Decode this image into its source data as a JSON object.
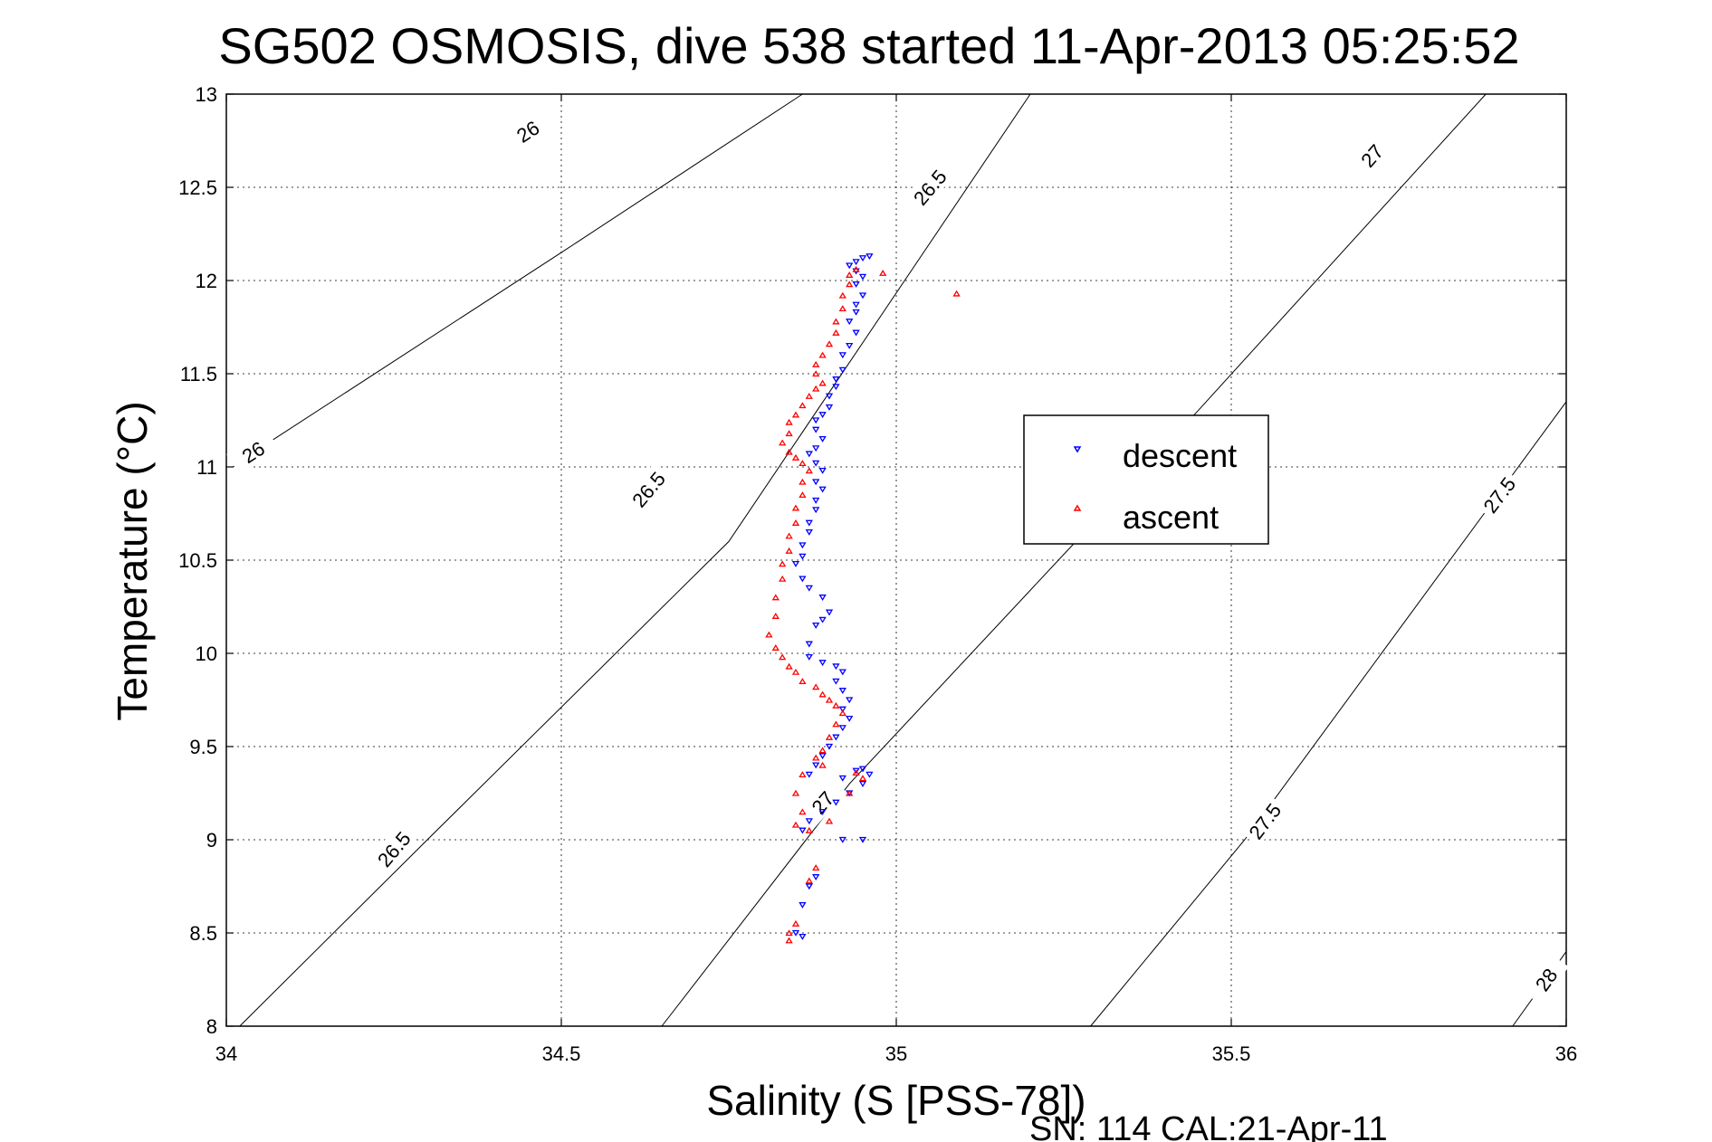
{
  "chart_data": {
    "type": "scatter",
    "title": "SG502 OSMOSIS, dive 538 started 11-Apr-2013 05:25:52",
    "xlabel": "Salinity (S [PSS-78])",
    "ylabel": "Temperature (°C)",
    "footer": "SN: 114  CAL:21-Apr-11",
    "xlim": [
      34,
      36
    ],
    "ylim": [
      8,
      13
    ],
    "xticks": [
      "34",
      "34.5",
      "35",
      "35.5",
      "36"
    ],
    "yticks": [
      "8",
      "8.5",
      "9",
      "9.5",
      "10",
      "10.5",
      "11",
      "11.5",
      "12",
      "12.5",
      "13"
    ],
    "grid": true,
    "legend_position": "right",
    "density_contours": [
      {
        "label": "26",
        "points": [
          [
            34.01,
            11.0
          ],
          [
            34.05,
            11.1
          ],
          [
            34.5,
            12.15
          ],
          [
            34.86,
            13.0
          ]
        ],
        "label_positions": [
          [
            34.04,
            11.08
          ],
          [
            34.45,
            12.8
          ]
        ]
      },
      {
        "label": "26.5",
        "points": [
          [
            34.02,
            8.0
          ],
          [
            34.3,
            9.0
          ],
          [
            34.75,
            10.6
          ],
          [
            35.2,
            13.0
          ]
        ],
        "label_positions": [
          [
            34.25,
            8.95
          ],
          [
            34.63,
            10.88
          ],
          [
            35.05,
            12.5
          ]
        ]
      },
      {
        "label": "27",
        "points": [
          [
            34.65,
            8.0
          ],
          [
            34.93,
            9.3
          ],
          [
            35.45,
            11.3
          ],
          [
            35.88,
            13.0
          ]
        ],
        "label_positions": [
          [
            34.89,
            9.2
          ],
          [
            35.71,
            12.67
          ]
        ]
      },
      {
        "label": "27.5",
        "points": [
          [
            35.29,
            8.0
          ],
          [
            35.52,
            9.0
          ],
          [
            36.0,
            11.35
          ]
        ],
        "label_positions": [
          [
            35.55,
            9.1
          ],
          [
            35.9,
            10.85
          ]
        ]
      },
      {
        "label": "28",
        "points": [
          [
            35.92,
            8.0
          ],
          [
            36.0,
            8.4
          ]
        ],
        "label_positions": [
          [
            35.97,
            8.25
          ]
        ]
      }
    ],
    "series": [
      {
        "name": "descent",
        "color": "#0000ff",
        "marker": "triangle-down",
        "points": [
          [
            34.96,
            12.13
          ],
          [
            34.95,
            12.12
          ],
          [
            34.94,
            12.1
          ],
          [
            34.93,
            12.08
          ],
          [
            34.94,
            12.05
          ],
          [
            34.95,
            12.02
          ],
          [
            34.94,
            11.98
          ],
          [
            34.95,
            11.92
          ],
          [
            34.94,
            11.87
          ],
          [
            34.94,
            11.83
          ],
          [
            34.93,
            11.78
          ],
          [
            34.94,
            11.72
          ],
          [
            34.93,
            11.65
          ],
          [
            34.92,
            11.6
          ],
          [
            34.92,
            11.52
          ],
          [
            34.91,
            11.47
          ],
          [
            34.91,
            11.43
          ],
          [
            34.9,
            11.38
          ],
          [
            34.9,
            11.32
          ],
          [
            34.89,
            11.28
          ],
          [
            34.88,
            11.25
          ],
          [
            34.88,
            11.2
          ],
          [
            34.89,
            11.15
          ],
          [
            34.88,
            11.1
          ],
          [
            34.87,
            11.07
          ],
          [
            34.88,
            11.02
          ],
          [
            34.89,
            10.98
          ],
          [
            34.88,
            10.92
          ],
          [
            34.89,
            10.88
          ],
          [
            34.88,
            10.82
          ],
          [
            34.88,
            10.77
          ],
          [
            34.87,
            10.7
          ],
          [
            34.87,
            10.65
          ],
          [
            34.86,
            10.58
          ],
          [
            34.86,
            10.52
          ],
          [
            34.85,
            10.48
          ],
          [
            34.86,
            10.4
          ],
          [
            34.87,
            10.35
          ],
          [
            34.89,
            10.3
          ],
          [
            34.9,
            10.22
          ],
          [
            34.89,
            10.18
          ],
          [
            34.88,
            10.15
          ],
          [
            34.87,
            10.05
          ],
          [
            34.87,
            9.98
          ],
          [
            34.89,
            9.95
          ],
          [
            34.91,
            9.93
          ],
          [
            34.92,
            9.9
          ],
          [
            34.91,
            9.85
          ],
          [
            34.92,
            9.8
          ],
          [
            34.93,
            9.75
          ],
          [
            34.92,
            9.7
          ],
          [
            34.93,
            9.65
          ],
          [
            34.92,
            9.6
          ],
          [
            34.91,
            9.55
          ],
          [
            34.9,
            9.5
          ],
          [
            34.89,
            9.45
          ],
          [
            34.88,
            9.4
          ],
          [
            34.87,
            9.35
          ],
          [
            34.92,
            9.33
          ],
          [
            34.94,
            9.37
          ],
          [
            34.95,
            9.38
          ],
          [
            34.96,
            9.35
          ],
          [
            34.95,
            9.3
          ],
          [
            34.93,
            9.25
          ],
          [
            34.91,
            9.2
          ],
          [
            34.89,
            9.15
          ],
          [
            34.87,
            9.1
          ],
          [
            34.86,
            9.05
          ],
          [
            34.92,
            9.0
          ],
          [
            34.88,
            8.8
          ],
          [
            34.87,
            8.75
          ],
          [
            34.86,
            8.65
          ],
          [
            34.85,
            8.5
          ],
          [
            34.86,
            8.48
          ],
          [
            34.95,
            9.0
          ]
        ]
      },
      {
        "name": "ascent",
        "color": "#ff0000",
        "marker": "triangle-up",
        "points": [
          [
            34.98,
            12.04
          ],
          [
            35.09,
            11.93
          ],
          [
            34.94,
            12.06
          ],
          [
            34.93,
            12.03
          ],
          [
            34.93,
            11.98
          ],
          [
            34.92,
            11.92
          ],
          [
            34.92,
            11.85
          ],
          [
            34.91,
            11.78
          ],
          [
            34.91,
            11.72
          ],
          [
            34.9,
            11.66
          ],
          [
            34.89,
            11.6
          ],
          [
            34.88,
            11.55
          ],
          [
            34.88,
            11.5
          ],
          [
            34.89,
            11.45
          ],
          [
            34.88,
            11.42
          ],
          [
            34.87,
            11.38
          ],
          [
            34.86,
            11.33
          ],
          [
            34.85,
            11.28
          ],
          [
            34.84,
            11.24
          ],
          [
            34.84,
            11.18
          ],
          [
            34.83,
            11.13
          ],
          [
            34.84,
            11.08
          ],
          [
            34.85,
            11.05
          ],
          [
            34.86,
            11.02
          ],
          [
            34.87,
            10.98
          ],
          [
            34.86,
            10.92
          ],
          [
            34.86,
            10.85
          ],
          [
            34.85,
            10.78
          ],
          [
            34.85,
            10.7
          ],
          [
            34.84,
            10.63
          ],
          [
            34.84,
            10.55
          ],
          [
            34.83,
            10.48
          ],
          [
            34.83,
            10.4
          ],
          [
            34.82,
            10.3
          ],
          [
            34.82,
            10.2
          ],
          [
            34.81,
            10.1
          ],
          [
            34.82,
            10.03
          ],
          [
            34.83,
            9.98
          ],
          [
            34.84,
            9.93
          ],
          [
            34.85,
            9.9
          ],
          [
            34.86,
            9.85
          ],
          [
            34.88,
            9.82
          ],
          [
            34.89,
            9.78
          ],
          [
            34.9,
            9.75
          ],
          [
            34.91,
            9.72
          ],
          [
            34.92,
            9.68
          ],
          [
            34.91,
            9.62
          ],
          [
            34.9,
            9.55
          ],
          [
            34.89,
            9.48
          ],
          [
            34.88,
            9.44
          ],
          [
            34.89,
            9.4
          ],
          [
            34.86,
            9.35
          ],
          [
            34.85,
            9.25
          ],
          [
            34.86,
            9.15
          ],
          [
            34.85,
            9.08
          ],
          [
            34.87,
            9.05
          ],
          [
            34.9,
            9.1
          ],
          [
            34.93,
            9.25
          ],
          [
            34.95,
            9.33
          ],
          [
            34.94,
            9.36
          ],
          [
            34.88,
            8.85
          ],
          [
            34.87,
            8.78
          ],
          [
            34.85,
            8.55
          ],
          [
            34.84,
            8.5
          ],
          [
            34.84,
            8.46
          ]
        ]
      }
    ]
  },
  "legend": {
    "descent_label": "descent",
    "ascent_label": "ascent"
  }
}
